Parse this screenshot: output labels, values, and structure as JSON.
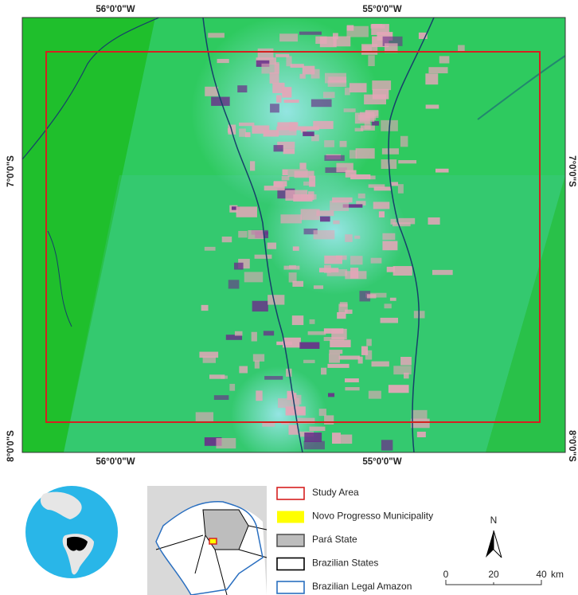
{
  "map": {
    "graticule": {
      "top": [
        "56°0'0\"W",
        "55°0'0\"W"
      ],
      "bottom": [
        "56°0'0\"W",
        "55°0'0\"W"
      ],
      "left": [
        "7°0'0\"S",
        "8°0'0\"S"
      ],
      "right": [
        "7°0'0\"S",
        "8°0'0\"S"
      ]
    },
    "legend": [
      {
        "label": "Study Area"
      },
      {
        "label": "Novo Progresso Municipality"
      },
      {
        "label": "Pará State"
      },
      {
        "label": "Brazilian States"
      },
      {
        "label": "Brazilian Legal Amazon"
      }
    ],
    "north_arrow": "N",
    "scale_bar": {
      "ticks": [
        "0",
        "20",
        "40"
      ],
      "unit": "km"
    }
  }
}
